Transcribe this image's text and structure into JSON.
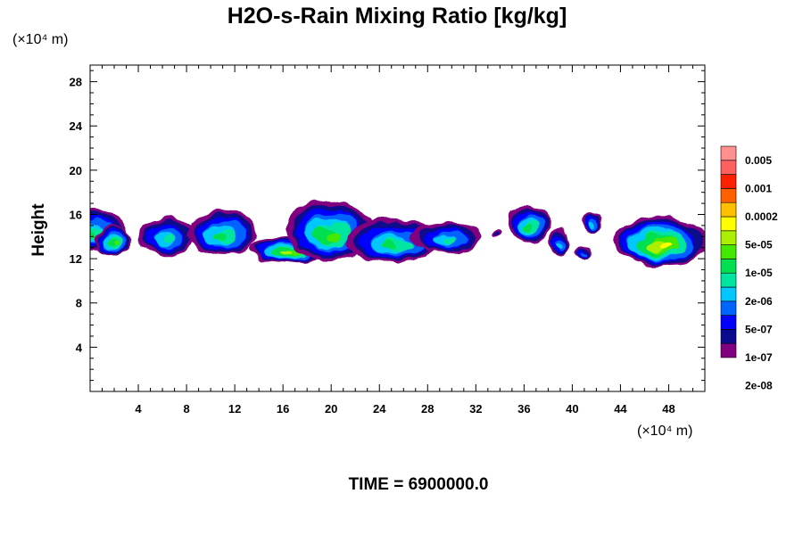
{
  "chart_data": {
    "type": "heatmap",
    "title": "H2O-s-Rain Mixing Ratio [kg/kg]",
    "xlabel": "",
    "ylabel": "Height",
    "x_unit": "(×10⁴ m)",
    "y_unit": "(×10⁴ m)",
    "xlim": [
      0,
      51
    ],
    "ylim": [
      0,
      29.5
    ],
    "x_ticks": [
      4,
      8,
      12,
      16,
      20,
      24,
      28,
      32,
      36,
      40,
      44,
      48
    ],
    "y_ticks": [
      4,
      8,
      12,
      16,
      20,
      24,
      28
    ],
    "time_label": "TIME = 6900000.0",
    "colorbar": {
      "labels": [
        "0.005",
        "0.001",
        "0.0002",
        "5e-05",
        "1e-05",
        "2e-06",
        "5e-07",
        "1e-07",
        "2e-08"
      ],
      "colors": [
        "#800080",
        "#0a0a8c",
        "#0000ff",
        "#0064ff",
        "#00c8ff",
        "#00e5a0",
        "#00e050",
        "#44e800",
        "#aaf000",
        "#ffff00",
        "#ffc000",
        "#ff6000",
        "#ff2000",
        "#ff6060",
        "#ff9090"
      ]
    },
    "cells": [
      {
        "x": 0.2,
        "y": 14.6,
        "rx": 2.8,
        "ry": 1.9,
        "level": 0.55
      },
      {
        "x": 1.8,
        "y": 13.6,
        "rx": 1.6,
        "ry": 1.3,
        "level": 0.62
      },
      {
        "x": 6.3,
        "y": 14.0,
        "rx": 2.4,
        "ry": 1.7,
        "level": 0.48
      },
      {
        "x": 11.0,
        "y": 14.4,
        "rx": 2.9,
        "ry": 2.1,
        "level": 0.52
      },
      {
        "x": 16.6,
        "y": 12.8,
        "rx": 3.4,
        "ry": 1.2,
        "level": 0.72
      },
      {
        "x": 19.8,
        "y": 14.6,
        "rx": 3.5,
        "ry": 2.8,
        "level": 0.66
      },
      {
        "x": 25.2,
        "y": 13.6,
        "rx": 3.9,
        "ry": 2.0,
        "level": 0.58
      },
      {
        "x": 29.6,
        "y": 13.9,
        "rx": 2.9,
        "ry": 1.4,
        "level": 0.45
      },
      {
        "x": 33.8,
        "y": 14.3,
        "rx": 0.4,
        "ry": 0.4,
        "level": 0.1
      },
      {
        "x": 36.4,
        "y": 15.1,
        "rx": 1.7,
        "ry": 1.8,
        "level": 0.5
      },
      {
        "x": 38.9,
        "y": 13.6,
        "rx": 0.8,
        "ry": 1.3,
        "level": 0.35
      },
      {
        "x": 41.6,
        "y": 15.3,
        "rx": 0.8,
        "ry": 1.0,
        "level": 0.35
      },
      {
        "x": 41.0,
        "y": 12.5,
        "rx": 0.7,
        "ry": 0.5,
        "level": 0.3
      },
      {
        "x": 47.2,
        "y": 13.6,
        "rx": 3.9,
        "ry": 2.3,
        "level": 0.8
      }
    ]
  }
}
